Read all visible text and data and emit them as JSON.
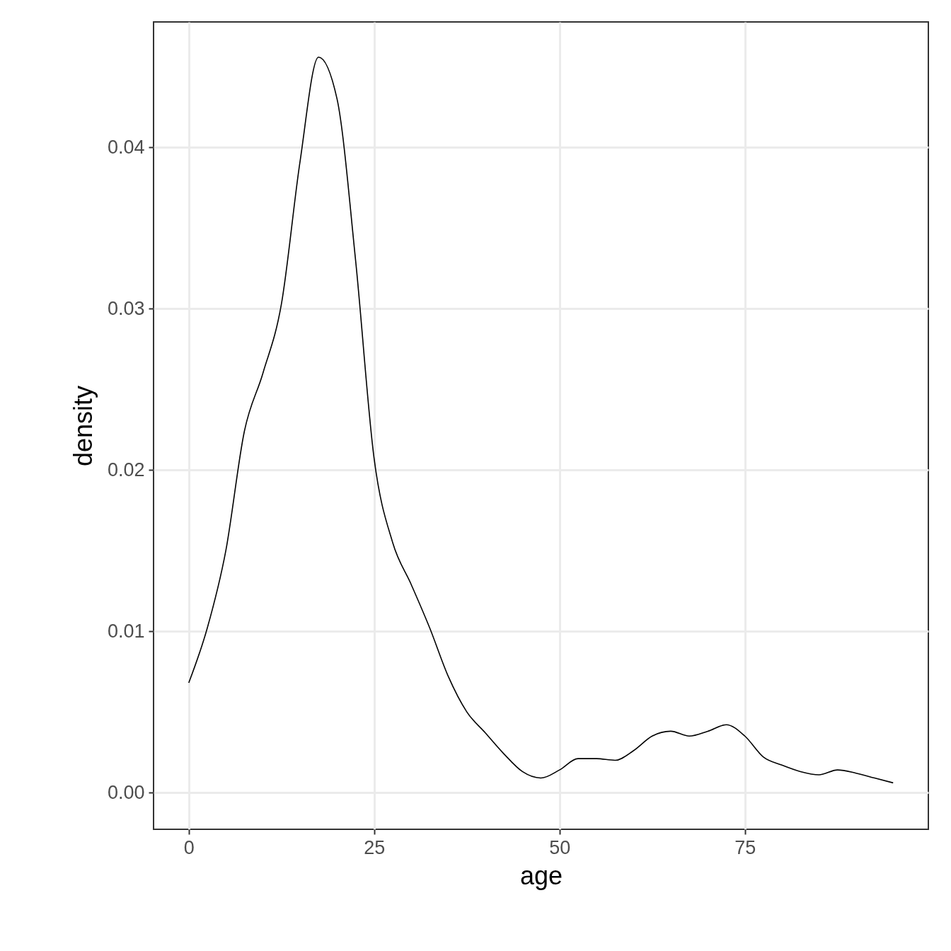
{
  "chart_data": {
    "type": "line",
    "xlabel": "age",
    "ylabel": "density",
    "x": [
      0,
      2.5,
      5,
      7.5,
      10,
      12.5,
      15,
      17.5,
      20,
      22.5,
      25,
      27.5,
      30,
      32.5,
      35,
      37.5,
      40,
      42.5,
      45,
      47.5,
      50,
      52.5,
      55,
      57.5,
      60,
      62.5,
      65,
      67.5,
      70,
      72.5,
      75,
      77.5,
      80,
      82.5,
      85,
      87.5,
      90,
      92.5,
      95
    ],
    "series": [
      {
        "color": "#000000",
        "values": [
          0.0068,
          0.0102,
          0.015,
          0.0224,
          0.026,
          0.0303,
          0.0391,
          0.0456,
          0.043,
          0.033,
          0.0207,
          0.0155,
          0.0129,
          0.0102,
          0.0072,
          0.005,
          0.0037,
          0.0024,
          0.0013,
          0.0009,
          0.0014,
          0.0021,
          0.0021,
          0.002,
          0.0026,
          0.0035,
          0.0038,
          0.0035,
          0.0038,
          0.0042,
          0.0035,
          0.0022,
          0.0017,
          0.0013,
          0.0011,
          0.0014,
          0.0012,
          0.0009,
          0.0006
        ]
      }
    ],
    "xlim": [
      -4.75,
      99.75
    ],
    "xticks": [
      0,
      25,
      50,
      75
    ],
    "ylim": [
      -0.00228,
      0.04778
    ],
    "yticks": [
      {
        "value": 0,
        "label": "0.00"
      },
      {
        "value": 0.01,
        "label": "0.01"
      },
      {
        "value": 0.02,
        "label": "0.02"
      },
      {
        "value": 0.03,
        "label": "0.03"
      },
      {
        "value": 0.04,
        "label": "0.04"
      }
    ],
    "grid": true,
    "line_style": "solid"
  }
}
